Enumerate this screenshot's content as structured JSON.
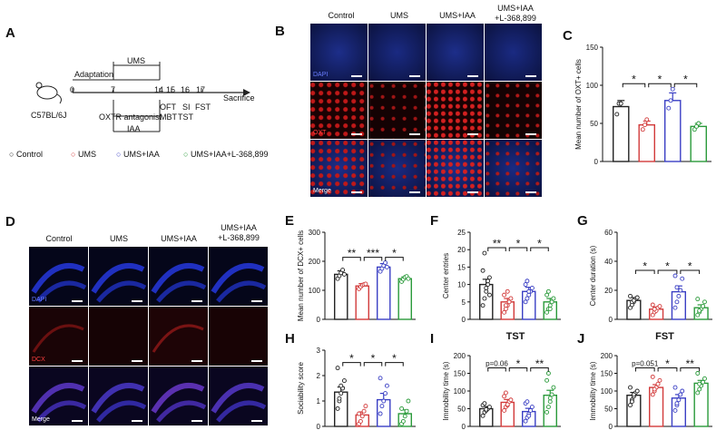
{
  "panels": {
    "A": {
      "letter": "A",
      "mouse": "C57BL/6J",
      "adaptation": "Adaptation",
      "ums": "UMS",
      "days": [
        "0",
        "7",
        "14",
        "15",
        "16",
        "17"
      ],
      "sacrifice": "Sacrifice",
      "tests": {
        "oft": "OFT",
        "si": "SI",
        "fst": "FST",
        "mbt": "MBT",
        "tst": "TST"
      },
      "oxtr": "OXTR antagonist",
      "iaa": "IAA",
      "legend": [
        "Control",
        "UMS",
        "UMS+IAA",
        "UMS+IAA+L-368,899"
      ]
    },
    "B": {
      "letter": "B",
      "cols": [
        "Control",
        "UMS",
        "UMS+IAA",
        "UMS+IAA\n+L-368,899"
      ],
      "rows": [
        "DAPI",
        "OXT",
        "Merge"
      ]
    },
    "D": {
      "letter": "D",
      "cols": [
        "Control",
        "UMS",
        "UMS+IAA",
        "UMS+IAA\n+L-368,899"
      ],
      "rows": [
        "DAPI",
        "DCX",
        "Merge"
      ]
    }
  },
  "colors": {
    "control": "#222222",
    "ums": "#d23a3a",
    "iaa": "#3a3fc4",
    "ant": "#2a9a3a",
    "dapi": "#1a2a9a",
    "red": "#b01818"
  },
  "chart_data": [
    {
      "letter": "C",
      "type": "bar",
      "ylabel": "Mean number of OXT+ cells",
      "ylim": [
        0,
        150
      ],
      "ticks": [
        0,
        50,
        100,
        150
      ],
      "categories": [
        "Control",
        "UMS",
        "UMS+IAA",
        "UMS+IAA+L-368,899"
      ],
      "values": [
        72,
        48,
        80,
        46
      ],
      "errors": [
        8,
        5,
        10,
        4
      ],
      "points": [
        [
          62,
          76,
          76
        ],
        [
          42,
          48,
          55
        ],
        [
          70,
          80,
          95
        ],
        [
          42,
          46,
          50
        ]
      ],
      "sig": [
        {
          "a": 0,
          "b": 1,
          "label": "*"
        },
        {
          "a": 1,
          "b": 2,
          "label": "*"
        },
        {
          "a": 2,
          "b": 3,
          "label": "*"
        }
      ]
    },
    {
      "letter": "E",
      "type": "bar",
      "ylabel": "Mean number of DCX+ cells",
      "ylim": [
        0,
        300
      ],
      "ticks": [
        0,
        100,
        200,
        300
      ],
      "categories": [
        "Control",
        "UMS",
        "UMS+IAA",
        "UMS+IAA+L-368,899"
      ],
      "values": [
        155,
        115,
        180,
        140
      ],
      "errors": [
        12,
        8,
        12,
        6
      ],
      "points": [
        [
          140,
          150,
          160,
          170,
          155
        ],
        [
          105,
          112,
          118,
          120,
          122
        ],
        [
          165,
          175,
          185,
          195,
          180
        ],
        [
          130,
          138,
          145,
          148,
          140
        ]
      ],
      "sig": [
        {
          "a": 0,
          "b": 1,
          "label": "**"
        },
        {
          "a": 1,
          "b": 2,
          "label": "***"
        },
        {
          "a": 2,
          "b": 3,
          "label": "*"
        }
      ]
    },
    {
      "letter": "F",
      "type": "bar",
      "ylabel": "Center entries",
      "ylim": [
        0,
        25
      ],
      "ticks": [
        0,
        5,
        10,
        15,
        20,
        25
      ],
      "categories": [
        "Control",
        "UMS",
        "UMS+IAA",
        "UMS+IAA+L-368,899"
      ],
      "values": [
        10,
        5,
        8,
        5
      ],
      "errors": [
        1.5,
        1,
        1.2,
        1
      ],
      "points": [
        [
          4,
          6,
          8,
          10,
          12,
          14,
          19,
          9,
          11,
          7
        ],
        [
          2,
          3,
          4,
          5,
          6,
          7,
          4,
          8
        ],
        [
          5,
          6,
          7,
          8,
          9,
          10,
          11,
          8
        ],
        [
          2,
          3,
          4,
          5,
          6,
          7,
          8,
          3
        ]
      ],
      "sig": [
        {
          "a": 0,
          "b": 1,
          "label": "**"
        },
        {
          "a": 1,
          "b": 2,
          "label": "*"
        },
        {
          "a": 2,
          "b": 3,
          "label": "*"
        }
      ]
    },
    {
      "letter": "G",
      "type": "bar",
      "ylabel": "Center duration (s)",
      "ylim": [
        0,
        60
      ],
      "ticks": [
        0,
        20,
        40,
        60
      ],
      "categories": [
        "Control",
        "UMS",
        "UMS+IAA",
        "UMS+IAA+L-368,899"
      ],
      "values": [
        13,
        7,
        19,
        8
      ],
      "errors": [
        2,
        1.5,
        4,
        2
      ],
      "points": [
        [
          8,
          10,
          12,
          14,
          15,
          16,
          12,
          13
        ],
        [
          3,
          5,
          6,
          8,
          9,
          10,
          7
        ],
        [
          8,
          12,
          16,
          20,
          28,
          30,
          22
        ],
        [
          3,
          5,
          7,
          9,
          12,
          14,
          6
        ]
      ],
      "sig": [
        {
          "a": 0,
          "b": 1,
          "label": "*"
        },
        {
          "a": 1,
          "b": 2,
          "label": "*"
        },
        {
          "a": 2,
          "b": 3,
          "label": "*"
        }
      ]
    },
    {
      "letter": "H",
      "type": "bar",
      "ylabel": "Sociability score",
      "ylim": [
        0,
        3
      ],
      "ticks": [
        0,
        1,
        2,
        3
      ],
      "categories": [
        "Control",
        "UMS",
        "UMS+IAA",
        "UMS+IAA+L-368,899"
      ],
      "values": [
        1.35,
        0.45,
        1.05,
        0.5
      ],
      "errors": [
        0.2,
        0.12,
        0.25,
        0.15
      ],
      "points": [
        [
          0.7,
          1.0,
          1.3,
          1.5,
          1.8,
          2.3,
          1.1,
          1.6
        ],
        [
          0.1,
          0.2,
          0.4,
          0.6,
          0.8,
          0.5
        ],
        [
          0.5,
          0.8,
          1.0,
          1.3,
          1.6,
          1.9
        ],
        [
          0.1,
          0.2,
          0.4,
          0.6,
          1.0,
          0.7
        ]
      ],
      "sig": [
        {
          "a": 0,
          "b": 1,
          "label": "*"
        },
        {
          "a": 1,
          "b": 2,
          "label": "*"
        },
        {
          "a": 2,
          "b": 3,
          "label": "*"
        }
      ]
    },
    {
      "letter": "I",
      "type": "bar",
      "title": "TST",
      "ylabel": "Immobility time (s)",
      "ylim": [
        0,
        200
      ],
      "ticks": [
        0,
        50,
        100,
        150,
        200
      ],
      "categories": [
        "Control",
        "UMS",
        "UMS+IAA",
        "UMS+IAA+L-368,899"
      ],
      "values": [
        50,
        68,
        42,
        88
      ],
      "errors": [
        6,
        8,
        9,
        14
      ],
      "points": [
        [
          30,
          40,
          45,
          50,
          55,
          60,
          65,
          48
        ],
        [
          45,
          55,
          60,
          70,
          75,
          85,
          95,
          62
        ],
        [
          15,
          25,
          35,
          45,
          55,
          65,
          70,
          30
        ],
        [
          40,
          55,
          70,
          90,
          110,
          130,
          150,
          80
        ]
      ],
      "sig": [
        {
          "a": 0,
          "b": 1,
          "label": "p=0.06"
        },
        {
          "a": 1,
          "b": 2,
          "label": "*"
        },
        {
          "a": 2,
          "b": 3,
          "label": "**"
        }
      ]
    },
    {
      "letter": "J",
      "type": "bar",
      "title": "FST",
      "ylabel": "Immobility time (s)",
      "ylim": [
        0,
        200
      ],
      "ticks": [
        0,
        50,
        100,
        150,
        200
      ],
      "categories": [
        "Control",
        "UMS",
        "UMS+IAA",
        "UMS+IAA+L-368,899"
      ],
      "values": [
        88,
        110,
        80,
        122
      ],
      "errors": [
        8,
        8,
        10,
        8
      ],
      "points": [
        [
          60,
          75,
          85,
          95,
          100,
          110,
          70,
          90
        ],
        [
          90,
          100,
          110,
          120,
          130,
          140,
          105
        ],
        [
          45,
          60,
          75,
          90,
          100,
          110,
          65
        ],
        [
          95,
          105,
          115,
          125,
          135,
          150,
          120
        ]
      ],
      "sig": [
        {
          "a": 0,
          "b": 1,
          "label": "p=0.051"
        },
        {
          "a": 1,
          "b": 2,
          "label": "*"
        },
        {
          "a": 2,
          "b": 3,
          "label": "**"
        }
      ]
    }
  ]
}
